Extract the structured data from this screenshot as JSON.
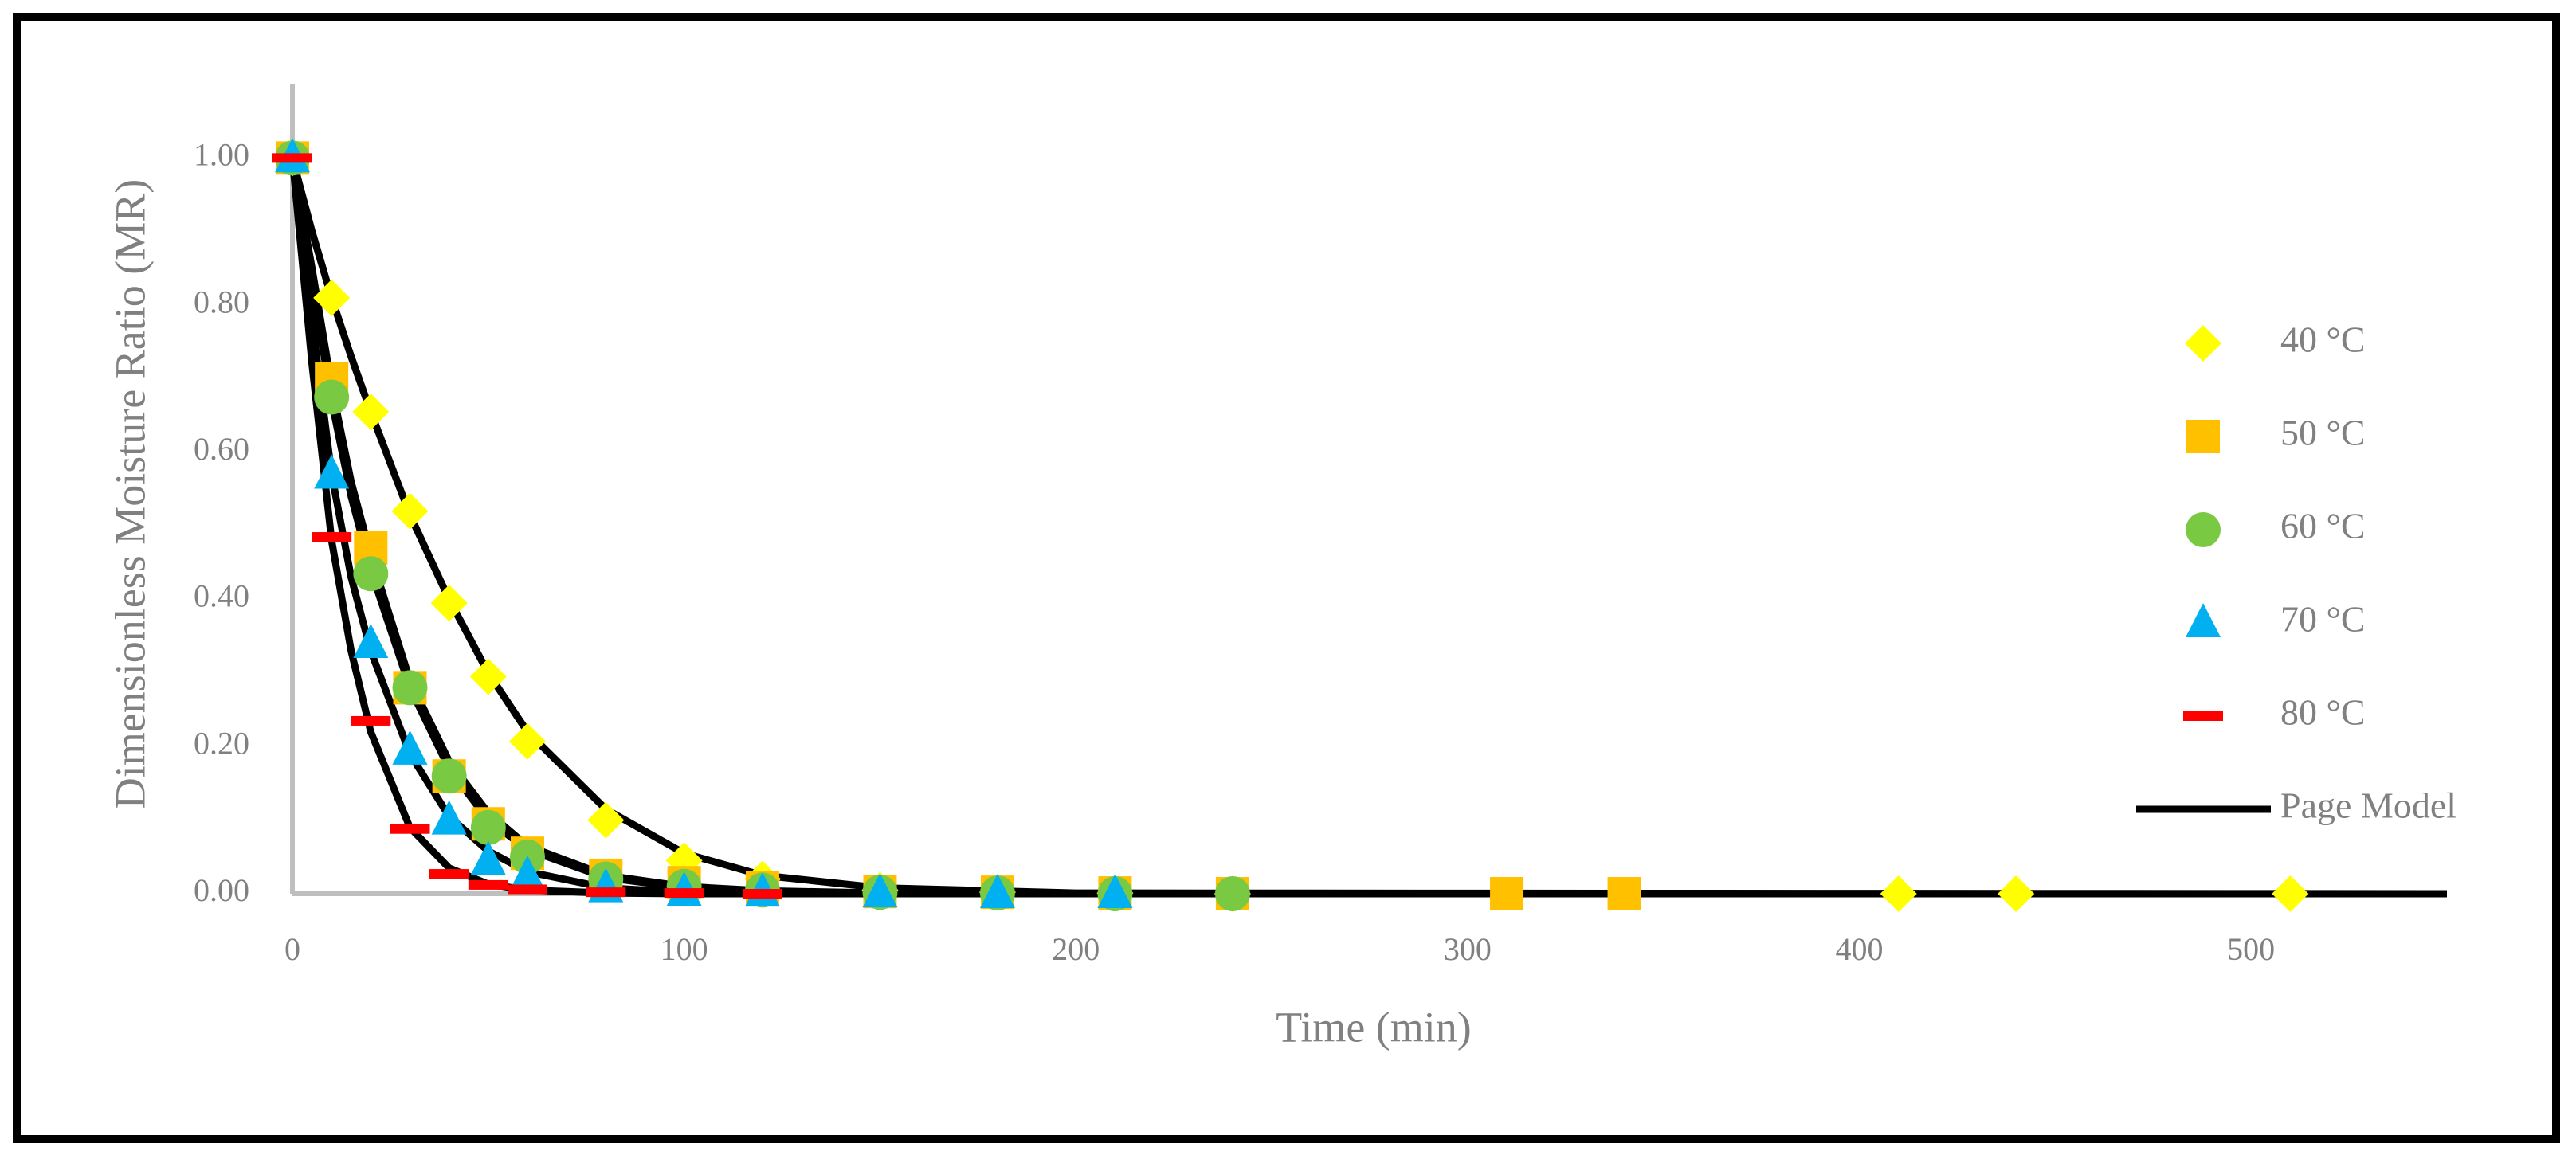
{
  "chart_data": {
    "type": "scatter",
    "x_label": "Time (min)",
    "y_label": "Dimensionless Moisture Ratio (MR)",
    "xlim": [
      0,
      550
    ],
    "ylim": [
      0,
      1.1
    ],
    "xticks": [
      0,
      100,
      200,
      300,
      400,
      500
    ],
    "yticks": [
      {
        "value": 0,
        "label": "0.00"
      },
      {
        "value": 0.2,
        "label": "0.20"
      },
      {
        "value": 0.4,
        "label": "0.40"
      },
      {
        "value": 0.6,
        "label": "0.60"
      },
      {
        "value": 0.8,
        "label": "0.80"
      },
      {
        "value": 1,
        "label": "1.00"
      }
    ],
    "grid": false,
    "legend": "right",
    "series": [
      {
        "name": "40 °C",
        "color": "#ffff00",
        "marker": "diamond",
        "x": [
          0,
          10,
          20,
          30,
          40,
          50,
          60,
          80,
          100,
          120,
          150,
          180,
          210,
          240,
          410,
          440,
          510
        ],
        "values": [
          1.0,
          0.81,
          0.655,
          0.52,
          0.395,
          0.295,
          0.207,
          0.1,
          0.045,
          0.02,
          0.005,
          0.002,
          0.001,
          0,
          0,
          0,
          0
        ]
      },
      {
        "name": "50 °C",
        "color": "#ffc000",
        "marker": "square",
        "x": [
          0,
          10,
          20,
          30,
          40,
          50,
          60,
          80,
          100,
          120,
          150,
          180,
          210,
          240,
          310,
          340
        ],
        "values": [
          1.0,
          0.7,
          0.47,
          0.28,
          0.16,
          0.095,
          0.055,
          0.025,
          0.015,
          0.008,
          0.003,
          0.002,
          0.001,
          0,
          0,
          0
        ]
      },
      {
        "name": "60 °C",
        "color": "#7ac943",
        "marker": "circle",
        "x": [
          0,
          10,
          20,
          30,
          40,
          50,
          60,
          80,
          100,
          120,
          150,
          180,
          210,
          240
        ],
        "values": [
          1.0,
          0.675,
          0.435,
          0.28,
          0.16,
          0.09,
          0.05,
          0.02,
          0.01,
          0.005,
          0.002,
          0.001,
          0,
          0
        ]
      },
      {
        "name": "70 °C",
        "color": "#00b0f0",
        "marker": "triangle",
        "x": [
          0,
          10,
          20,
          30,
          40,
          50,
          60,
          80,
          100,
          120,
          150,
          180,
          210
        ],
        "values": [
          1.0,
          0.57,
          0.34,
          0.195,
          0.1,
          0.045,
          0.025,
          0.008,
          0.003,
          0.002,
          0.001,
          0,
          0
        ]
      },
      {
        "name": "80 °C",
        "color": "#ff0000",
        "marker": "dash",
        "x": [
          0,
          10,
          20,
          30,
          40,
          50,
          60,
          80,
          100,
          120
        ],
        "values": [
          1.0,
          0.485,
          0.235,
          0.088,
          0.027,
          0.012,
          0.006,
          0.002,
          0.001,
          0
        ]
      }
    ],
    "model": {
      "name": "Page Model",
      "color": "#000000",
      "x": [
        0,
        5,
        10,
        15,
        20,
        30,
        40,
        50,
        60,
        80,
        100,
        120,
        150,
        200,
        550
      ],
      "curves": [
        [
          1,
          0.9,
          0.81,
          0.73,
          0.655,
          0.515,
          0.4,
          0.3,
          0.22,
          0.115,
          0.055,
          0.025,
          0.008,
          0.001,
          0
        ],
        [
          1,
          0.85,
          0.69,
          0.56,
          0.46,
          0.29,
          0.18,
          0.11,
          0.065,
          0.025,
          0.01,
          0.004,
          0.001,
          0,
          0
        ],
        [
          1,
          0.83,
          0.67,
          0.54,
          0.44,
          0.28,
          0.17,
          0.1,
          0.06,
          0.022,
          0.008,
          0.003,
          0.001,
          0,
          0
        ],
        [
          1,
          0.78,
          0.57,
          0.43,
          0.33,
          0.19,
          0.105,
          0.058,
          0.03,
          0.008,
          0.002,
          0.001,
          0,
          0,
          0
        ],
        [
          1,
          0.72,
          0.48,
          0.33,
          0.22,
          0.09,
          0.035,
          0.013,
          0.005,
          0.001,
          0,
          0,
          0,
          0,
          0
        ]
      ]
    }
  }
}
